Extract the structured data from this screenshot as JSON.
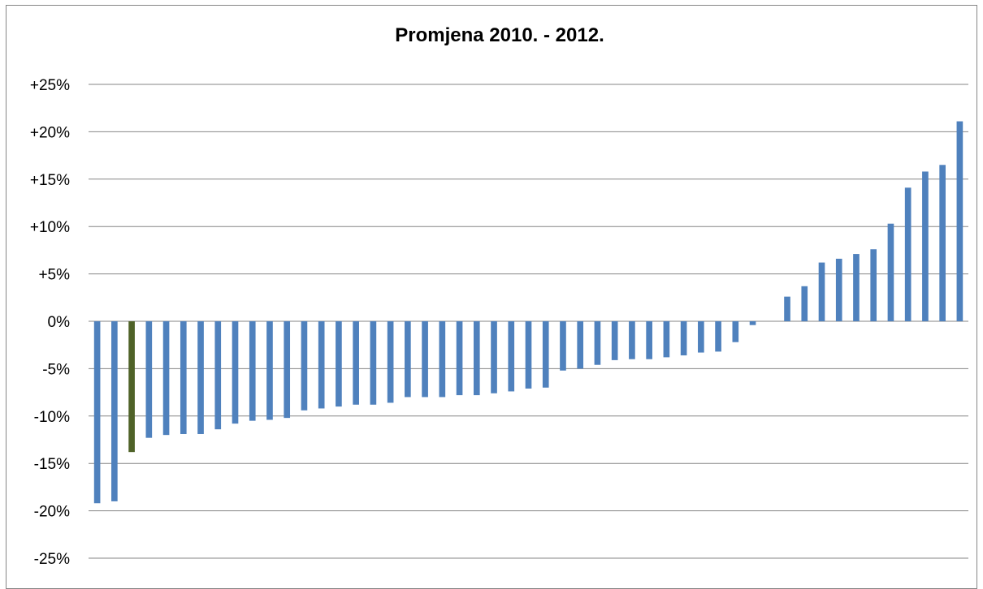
{
  "chart_data": {
    "type": "bar",
    "title": "Promjena 2010. - 2012.",
    "xlabel": "",
    "ylabel": "",
    "ylim": [
      -25,
      25
    ],
    "y_ticks": [
      25,
      20,
      15,
      10,
      5,
      0,
      -5,
      -10,
      -15,
      -20,
      -25
    ],
    "y_tick_labels": [
      "+25%",
      "+20%",
      "+15%",
      "+10%",
      "+5%",
      "0%",
      "-5%",
      "-10%",
      "-15%",
      "-20%",
      "-25%"
    ],
    "grid": true,
    "legend": "none",
    "colors": {
      "default": "#4F81BD",
      "highlight": "#4F6228",
      "grid": "#868686"
    },
    "highlight_index": 2,
    "values": [
      -19.2,
      -19.0,
      -13.8,
      -12.3,
      -12.0,
      -11.9,
      -11.9,
      -11.4,
      -10.8,
      -10.5,
      -10.4,
      -10.2,
      -9.4,
      -9.2,
      -9.0,
      -8.8,
      -8.8,
      -8.6,
      -8.0,
      -8.0,
      -8.0,
      -7.8,
      -7.8,
      -7.6,
      -7.4,
      -7.1,
      -7.0,
      -5.2,
      -5.0,
      -4.6,
      -4.1,
      -4.0,
      -4.0,
      -3.8,
      -3.6,
      -3.3,
      -3.2,
      -2.2,
      -0.4,
      0,
      2.6,
      3.7,
      6.2,
      6.6,
      7.1,
      7.6,
      10.3,
      14.1,
      15.8,
      16.5,
      21.1
    ]
  }
}
